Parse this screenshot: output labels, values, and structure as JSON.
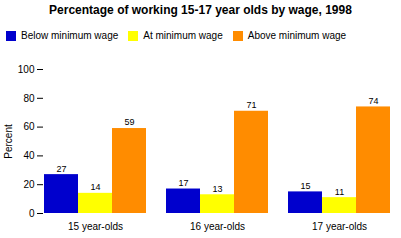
{
  "chart_data": {
    "type": "bar",
    "title": "Percentage of working 15-17 year olds by wage, 1998",
    "categories": [
      "15 year-olds",
      "16 year-olds",
      "17 year-olds"
    ],
    "series": [
      {
        "name": "Below minimum wage",
        "color": "#0000CD",
        "values": [
          27,
          17,
          15
        ]
      },
      {
        "name": "At minimum wage",
        "color": "#FFFF00",
        "values": [
          14,
          13,
          11
        ]
      },
      {
        "name": "Above minimum wage",
        "color": "#FF8C00",
        "values": [
          59,
          71,
          74
        ]
      }
    ],
    "ylabel": "Percent",
    "ylim": [
      0,
      100
    ],
    "yticks": [
      0,
      20,
      40,
      60,
      80,
      100
    ],
    "grid": false,
    "legend": "upper left",
    "data_labels": true
  }
}
